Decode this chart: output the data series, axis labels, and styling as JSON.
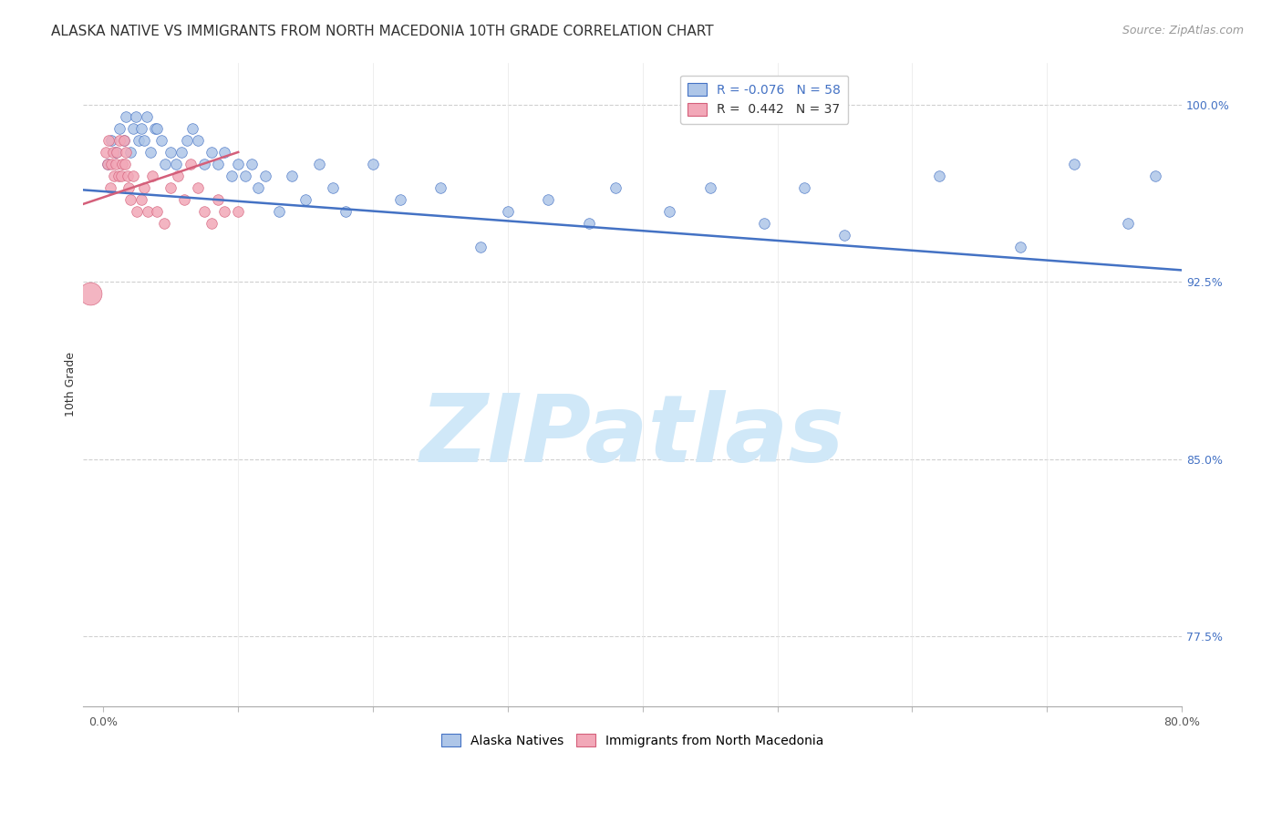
{
  "title": "ALASKA NATIVE VS IMMIGRANTS FROM NORTH MACEDONIA 10TH GRADE CORRELATION CHART",
  "source": "Source: ZipAtlas.com",
  "ylabel": "10th Grade",
  "x_tick_labels": [
    "0.0%",
    "",
    "",
    "",
    "",
    "",
    "",
    "",
    "80.0%"
  ],
  "x_tick_vals": [
    0.0,
    10.0,
    20.0,
    30.0,
    40.0,
    50.0,
    60.0,
    70.0,
    80.0
  ],
  "y_tick_labels_right": [
    "100.0%",
    "92.5%",
    "85.0%",
    "77.5%"
  ],
  "y_tick_vals": [
    100.0,
    92.5,
    85.0,
    77.5
  ],
  "xlim": [
    -1.5,
    80.0
  ],
  "ylim": [
    74.5,
    101.8
  ],
  "legend_blue_label": "R = -0.076   N = 58",
  "legend_pink_label": "R =  0.442   N = 37",
  "blue_color": "#aec6e8",
  "pink_color": "#f2a8b8",
  "blue_line_color": "#4472c4",
  "pink_line_color": "#d45f7a",
  "watermark": "ZIPatlas",
  "watermark_color": "#d0e8f8",
  "bottom_legend_blue": "Alaska Natives",
  "bottom_legend_pink": "Immigrants from North Macedonia",
  "blue_scatter_x": [
    0.3,
    0.6,
    0.9,
    1.2,
    1.5,
    1.7,
    2.0,
    2.2,
    2.4,
    2.6,
    2.8,
    3.0,
    3.2,
    3.5,
    3.8,
    4.0,
    4.3,
    4.6,
    5.0,
    5.4,
    5.8,
    6.2,
    6.6,
    7.0,
    7.5,
    8.0,
    8.5,
    9.0,
    9.5,
    10.0,
    10.5,
    11.0,
    11.5,
    12.0,
    13.0,
    14.0,
    15.0,
    16.0,
    17.0,
    18.0,
    20.0,
    22.0,
    25.0,
    28.0,
    30.0,
    33.0,
    36.0,
    38.0,
    42.0,
    45.0,
    49.0,
    52.0,
    55.0,
    62.0,
    68.0,
    72.0,
    76.0,
    78.0
  ],
  "blue_scatter_y": [
    97.5,
    98.5,
    98.0,
    99.0,
    98.5,
    99.5,
    98.0,
    99.0,
    99.5,
    98.5,
    99.0,
    98.5,
    99.5,
    98.0,
    99.0,
    99.0,
    98.5,
    97.5,
    98.0,
    97.5,
    98.0,
    98.5,
    99.0,
    98.5,
    97.5,
    98.0,
    97.5,
    98.0,
    97.0,
    97.5,
    97.0,
    97.5,
    96.5,
    97.0,
    95.5,
    97.0,
    96.0,
    97.5,
    96.5,
    95.5,
    97.5,
    96.0,
    96.5,
    94.0,
    95.5,
    96.0,
    95.0,
    96.5,
    95.5,
    96.5,
    95.0,
    96.5,
    94.5,
    97.0,
    94.0,
    97.5,
    95.0,
    97.0
  ],
  "pink_scatter_x": [
    0.2,
    0.3,
    0.4,
    0.5,
    0.6,
    0.7,
    0.8,
    0.9,
    1.0,
    1.1,
    1.2,
    1.3,
    1.4,
    1.5,
    1.6,
    1.7,
    1.8,
    1.9,
    2.0,
    2.2,
    2.5,
    2.8,
    3.0,
    3.3,
    3.6,
    4.0,
    4.5,
    5.0,
    5.5,
    6.0,
    6.5,
    7.0,
    7.5,
    8.0,
    8.5,
    9.0,
    10.0
  ],
  "pink_scatter_y": [
    98.0,
    97.5,
    98.5,
    96.5,
    97.5,
    98.0,
    97.0,
    97.5,
    98.0,
    97.0,
    98.5,
    97.0,
    97.5,
    98.5,
    97.5,
    98.0,
    97.0,
    96.5,
    96.0,
    97.0,
    95.5,
    96.0,
    96.5,
    95.5,
    97.0,
    95.5,
    95.0,
    96.5,
    97.0,
    96.0,
    97.5,
    96.5,
    95.5,
    95.0,
    96.0,
    95.5,
    95.5
  ],
  "blue_line_x": [
    -1.5,
    80.0
  ],
  "blue_line_y": [
    96.4,
    93.0
  ],
  "pink_line_x": [
    -1.5,
    10.0
  ],
  "pink_line_y": [
    95.8,
    98.0
  ],
  "pink_large_dot_x": [
    -1.0
  ],
  "pink_large_dot_y": [
    92.0
  ],
  "title_fontsize": 11,
  "source_fontsize": 9,
  "axis_label_fontsize": 9,
  "tick_fontsize": 9,
  "legend_fontsize": 10,
  "marker_size": 70
}
